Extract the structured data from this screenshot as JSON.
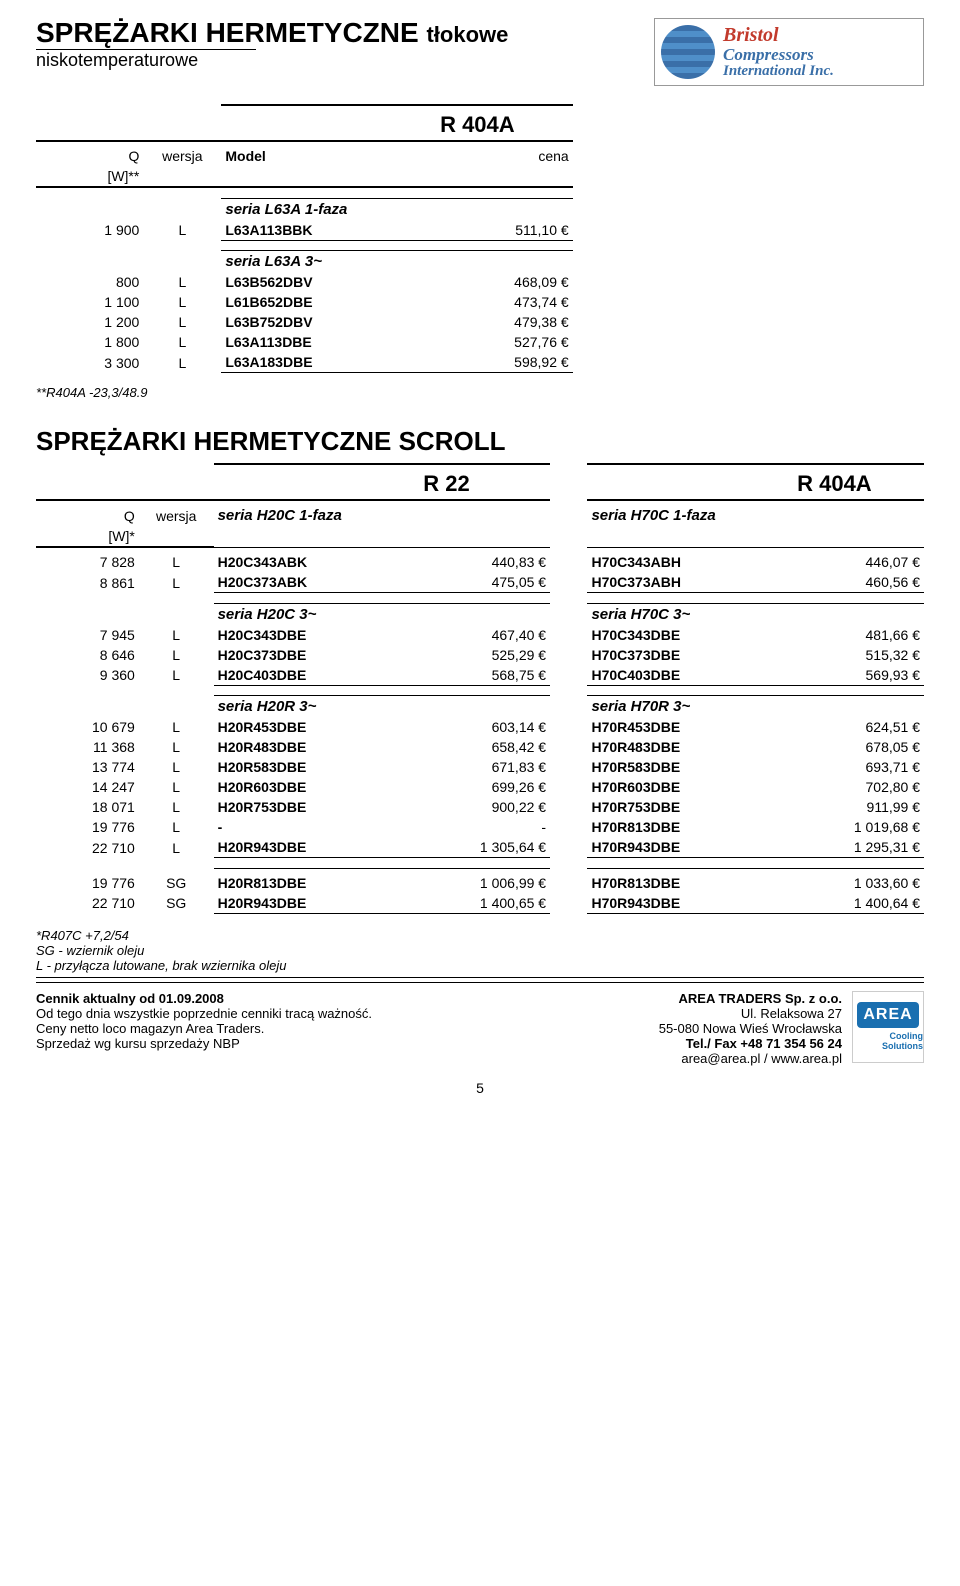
{
  "header": {
    "title_main": "SPRĘŻARKI HERMETYCZNE",
    "title_sub": "tłokowe",
    "subtitle": "niskotemperaturowe",
    "logo": {
      "l1": "Bristol",
      "l2": "Compressors",
      "l3": "International Inc."
    }
  },
  "top_table": {
    "refrig": "R 404A",
    "col_q": "Q",
    "col_w": "[W]**",
    "col_ver": "wersja",
    "col_model": "Model",
    "col_price": "cena",
    "sec1_label": "seria L63A 1-faza",
    "sec1_rows": [
      {
        "q": "1 900",
        "v": "L",
        "m": "L63A113BBK",
        "p": "511,10 €"
      }
    ],
    "sec2_label": "seria L63A 3~",
    "sec2_rows": [
      {
        "q": "800",
        "v": "L",
        "m": "L63B562DBV",
        "p": "468,09 €"
      },
      {
        "q": "1 100",
        "v": "L",
        "m": "L61B652DBE",
        "p": "473,74 €"
      },
      {
        "q": "1 200",
        "v": "L",
        "m": "L63B752DBV",
        "p": "479,38 €"
      },
      {
        "q": "1 800",
        "v": "L",
        "m": "L63A113DBE",
        "p": "527,76 €"
      },
      {
        "q": "3 300",
        "v": "L",
        "m": "L63A183DBE",
        "p": "598,92 €"
      }
    ],
    "footnote": "**R404A -23,3/48.9"
  },
  "scroll": {
    "title": "SPRĘŻARKI HERMETYCZNE SCROLL",
    "refrig_left": "R 22",
    "refrig_right": "R 404A",
    "col_q": "Q",
    "col_w": "[W]*",
    "col_ver": "wersja",
    "h20c1_label": "seria H20C 1-faza",
    "h70c1_label": "seria H70C 1-faza",
    "h20c1_rows": [
      {
        "q": "7 828",
        "v": "L",
        "m1": "H20C343ABK",
        "p1": "440,83 €",
        "m2": "H70C343ABH",
        "p2": "446,07 €"
      },
      {
        "q": "8 861",
        "v": "L",
        "m1": "H20C373ABK",
        "p1": "475,05 €",
        "m2": "H70C373ABH",
        "p2": "460,56 €"
      }
    ],
    "h20c3_label": "seria H20C 3~",
    "h70c3_label": "seria H70C 3~",
    "h20c3_rows": [
      {
        "q": "7 945",
        "v": "L",
        "m1": "H20C343DBE",
        "p1": "467,40 €",
        "m2": "H70C343DBE",
        "p2": "481,66 €"
      },
      {
        "q": "8 646",
        "v": "L",
        "m1": "H20C373DBE",
        "p1": "525,29 €",
        "m2": "H70C373DBE",
        "p2": "515,32 €"
      },
      {
        "q": "9 360",
        "v": "L",
        "m1": "H20C403DBE",
        "p1": "568,75 €",
        "m2": "H70C403DBE",
        "p2": "569,93 €"
      }
    ],
    "h20r3_label": "seria H20R 3~",
    "h70r3_label": "seria H70R 3~",
    "h20r3_rows": [
      {
        "q": "10 679",
        "v": "L",
        "m1": "H20R453DBE",
        "p1": "603,14 €",
        "m2": "H70R453DBE",
        "p2": "624,51 €"
      },
      {
        "q": "11 368",
        "v": "L",
        "m1": "H20R483DBE",
        "p1": "658,42 €",
        "m2": "H70R483DBE",
        "p2": "678,05 €"
      },
      {
        "q": "13 774",
        "v": "L",
        "m1": "H20R583DBE",
        "p1": "671,83 €",
        "m2": "H70R583DBE",
        "p2": "693,71 €"
      },
      {
        "q": "14 247",
        "v": "L",
        "m1": "H20R603DBE",
        "p1": "699,26 €",
        "m2": "H70R603DBE",
        "p2": "702,80 €"
      },
      {
        "q": "18 071",
        "v": "L",
        "m1": "H20R753DBE",
        "p1": "900,22 €",
        "m2": "H70R753DBE",
        "p2": "911,99 €"
      },
      {
        "q": "19 776",
        "v": "L",
        "m1": "-",
        "p1": "-",
        "m2": "H70R813DBE",
        "p2": "1 019,68 €"
      },
      {
        "q": "22 710",
        "v": "L",
        "m1": "H20R943DBE",
        "p1": "1 305,64 €",
        "m2": "H70R943DBE",
        "p2": "1 295,31 €"
      }
    ],
    "sg_rows": [
      {
        "q": "19 776",
        "v": "SG",
        "m1": "H20R813DBE",
        "p1": "1 006,99 €",
        "m2": "H70R813DBE",
        "p2": "1 033,60 €"
      },
      {
        "q": "22 710",
        "v": "SG",
        "m1": "H20R943DBE",
        "p1": "1 400,65 €",
        "m2": "H70R943DBE",
        "p2": "1 400,64 €"
      }
    ],
    "footnotes": [
      "*R407C +7,2/54",
      "SG - wziernik oleju",
      "L - przyłącza lutowane, brak wziernika oleju"
    ]
  },
  "footer": {
    "left": [
      "Cennik aktualny od 01.09.2008",
      "Od tego dnia wszystkie poprzednie cenniki tracą ważność.",
      "Ceny netto loco magazyn Area Traders.",
      "Sprzedaż wg kursu sprzedaży NBP"
    ],
    "right_title": "AREA TRADERS Sp. z o.o.",
    "right": [
      "Ul. Relaksowa 27",
      "55-080 Nowa Wieś Wrocławska",
      "Tel./ Fax +48 71 354 56 24",
      "area@area.pl / www.area.pl"
    ],
    "area_logo_top": "AREA",
    "area_logo_bot": "Cooling Solutions",
    "page": "5"
  }
}
